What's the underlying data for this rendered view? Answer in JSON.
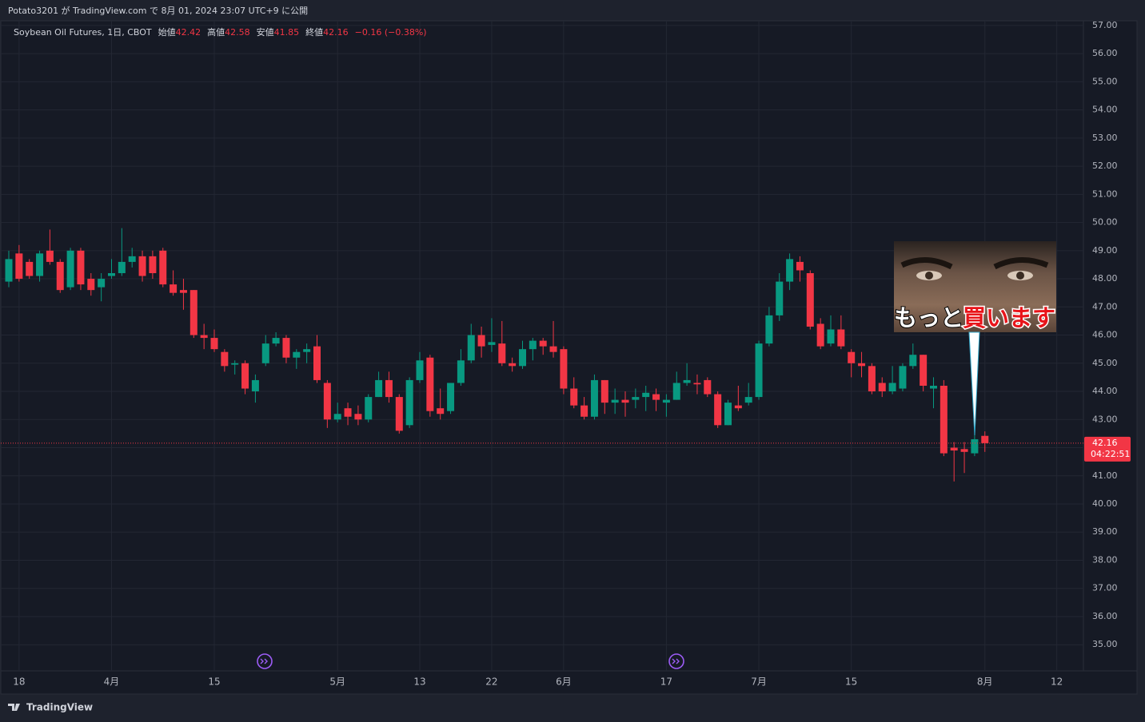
{
  "header": "Potato3201 が TradingView.com で 8月 01, 2024 23:07 UTC+9 に公開",
  "footer": "TradingView",
  "annotation": {
    "line1": "もっと",
    "line2": "買います"
  },
  "chart_data": {
    "type": "candlestick",
    "title": "Soybean Oil Futures, 1日, CBOT",
    "legend_labels": {
      "open": "始値",
      "high": "高値",
      "low": "安値",
      "close": "終値"
    },
    "change": "−0.16 (−0.38%)",
    "countdown": "04:22:51",
    "up_color": "#089981",
    "down_color": "#f23645",
    "categories": [
      null,
      "18",
      null,
      null,
      null,
      null,
      null,
      null,
      null,
      null,
      "4月",
      null,
      null,
      null,
      null,
      null,
      null,
      null,
      null,
      null,
      "15",
      null,
      null,
      null,
      null,
      null,
      null,
      null,
      null,
      null,
      null,
      null,
      "5月",
      null,
      null,
      null,
      null,
      null,
      null,
      null,
      "13",
      null,
      null,
      null,
      null,
      null,
      null,
      "22",
      null,
      null,
      null,
      null,
      null,
      null,
      "6月",
      null,
      null,
      null,
      null,
      null,
      null,
      null,
      null,
      null,
      "17",
      null,
      null,
      null,
      null,
      null,
      null,
      null,
      null,
      "7月",
      null,
      null,
      null,
      null,
      null,
      null,
      null,
      null,
      "15",
      null,
      null,
      null,
      null,
      null,
      null,
      null,
      null,
      null,
      null,
      null,
      null,
      "8月",
      null,
      null,
      null,
      null,
      null,
      null,
      "12"
    ],
    "open": [
      47.9,
      48.9,
      48.6,
      48.1,
      49.0,
      48.6,
      47.7,
      49.0,
      48.0,
      47.7,
      48.1,
      48.2,
      48.6,
      48.8,
      48.8,
      49.0,
      47.8,
      47.6,
      47.6,
      46.0,
      45.9,
      45.4,
      44.95,
      45.0,
      44.0,
      45.0,
      45.7,
      45.9,
      45.2,
      45.4,
      45.6,
      44.3,
      43.0,
      43.4,
      43.2,
      43.0,
      43.8,
      44.4,
      43.8,
      42.8,
      44.4,
      45.2,
      43.4,
      43.3,
      44.3,
      45.1,
      46.0,
      45.65,
      45.7,
      45.0,
      44.9,
      45.5,
      45.8,
      45.6,
      45.5,
      44.1,
      43.5,
      43.1,
      44.4,
      43.6,
      43.7,
      43.7,
      43.8,
      43.9,
      43.6,
      43.7,
      44.3,
      44.3,
      44.4,
      43.9,
      42.8,
      43.5,
      43.6,
      43.8,
      45.7,
      46.7,
      47.9,
      48.6,
      48.2,
      46.4,
      45.7,
      46.2,
      45.4,
      45.0,
      44.9,
      44.3,
      44.0,
      44.1,
      44.9,
      45.3,
      44.1,
      44.2,
      42.0,
      41.95,
      41.8,
      42.42,
      null,
      null,
      null,
      null,
      null,
      null,
      null
    ],
    "high": [
      49.0,
      49.2,
      48.7,
      49.0,
      49.75,
      48.7,
      49.1,
      49.1,
      48.2,
      48.2,
      48.7,
      49.8,
      49.1,
      49.0,
      49.0,
      49.1,
      48.3,
      48.0,
      47.6,
      46.4,
      46.2,
      45.5,
      45.1,
      45.1,
      44.6,
      46.0,
      46.1,
      46.0,
      45.5,
      45.7,
      46.0,
      44.4,
      43.6,
      43.6,
      43.5,
      43.9,
      44.7,
      44.7,
      43.9,
      44.5,
      45.4,
      45.3,
      44.1,
      44.3,
      45.5,
      46.4,
      46.3,
      46.6,
      46.5,
      45.2,
      45.8,
      45.9,
      45.9,
      46.5,
      45.6,
      44.5,
      43.8,
      44.6,
      44.4,
      44.1,
      44.0,
      44.1,
      44.2,
      44.1,
      43.9,
      44.7,
      45.0,
      44.6,
      44.5,
      44.0,
      43.7,
      44.2,
      44.3,
      45.8,
      47.0,
      48.2,
      48.9,
      48.8,
      48.3,
      46.6,
      46.7,
      46.7,
      45.5,
      45.4,
      45.0,
      44.5,
      44.9,
      45.0,
      45.7,
      45.3,
      44.5,
      44.4,
      42.2,
      42.2,
      42.5,
      42.58,
      null,
      null,
      null,
      null,
      null,
      null,
      null
    ],
    "low": [
      47.7,
      47.9,
      48.0,
      47.9,
      48.5,
      47.5,
      47.6,
      47.6,
      47.4,
      47.2,
      48.0,
      48.1,
      48.4,
      47.9,
      48.0,
      47.7,
      47.4,
      46.9,
      45.9,
      45.5,
      45.4,
      44.7,
      44.6,
      43.9,
      43.6,
      44.9,
      45.6,
      45.0,
      44.8,
      45.0,
      44.3,
      42.7,
      42.9,
      42.8,
      42.8,
      42.9,
      43.8,
      43.6,
      42.5,
      42.7,
      44.3,
      43.1,
      43.0,
      43.2,
      44.2,
      45.0,
      45.2,
      45.4,
      44.9,
      44.7,
      44.8,
      45.1,
      45.3,
      45.2,
      43.9,
      43.4,
      43.0,
      43.0,
      43.2,
      43.2,
      43.1,
      43.4,
      43.3,
      43.3,
      43.1,
      43.7,
      44.2,
      43.9,
      43.8,
      42.7,
      42.8,
      43.3,
      43.5,
      43.7,
      45.6,
      46.5,
      47.6,
      47.9,
      46.2,
      45.5,
      45.6,
      45.5,
      44.5,
      44.5,
      43.9,
      43.8,
      43.9,
      44.0,
      44.8,
      44.0,
      43.4,
      41.7,
      40.8,
      41.1,
      41.7,
      41.85,
      null,
      null,
      null,
      null,
      null,
      null,
      null
    ],
    "close": [
      48.7,
      48.0,
      48.1,
      48.9,
      48.6,
      47.6,
      49.0,
      47.8,
      47.6,
      48.0,
      48.2,
      48.6,
      48.8,
      48.1,
      48.2,
      47.8,
      47.5,
      47.5,
      46.0,
      45.9,
      45.5,
      44.9,
      45.0,
      44.1,
      44.4,
      45.7,
      45.9,
      45.2,
      45.4,
      45.5,
      44.4,
      43.0,
      43.2,
      43.1,
      43.0,
      43.8,
      44.4,
      43.8,
      42.6,
      44.4,
      45.1,
      43.3,
      43.2,
      44.3,
      45.1,
      46.0,
      45.6,
      45.75,
      45.0,
      44.9,
      45.5,
      45.8,
      45.6,
      45.4,
      44.1,
      43.5,
      43.1,
      44.4,
      43.6,
      43.7,
      43.6,
      43.8,
      43.95,
      43.7,
      43.7,
      44.3,
      44.4,
      44.25,
      43.9,
      42.8,
      43.6,
      43.4,
      43.8,
      45.7,
      46.7,
      47.9,
      48.7,
      48.3,
      46.3,
      45.6,
      46.2,
      45.6,
      45.0,
      44.9,
      44.0,
      44.0,
      44.3,
      44.9,
      45.3,
      44.2,
      44.2,
      41.8,
      41.9,
      41.85,
      42.3,
      42.16,
      null,
      null,
      null,
      null,
      null,
      null,
      null
    ],
    "ylim": [
      34.07,
      57.28
    ],
    "yticks": [
      {
        "value": 57,
        "label": "57.00"
      },
      {
        "value": 56,
        "label": "56.00"
      },
      {
        "value": 55,
        "label": "55.00"
      },
      {
        "value": 54,
        "label": "54.00"
      },
      {
        "value": 53,
        "label": "53.00"
      },
      {
        "value": 52,
        "label": "52.00"
      },
      {
        "value": 51,
        "label": "51.00"
      },
      {
        "value": 50,
        "label": "50.00"
      },
      {
        "value": 49,
        "label": "49.00"
      },
      {
        "value": 48,
        "label": "48.00"
      },
      {
        "value": 47,
        "label": "47.00"
      },
      {
        "value": 46,
        "label": "46.00"
      },
      {
        "value": 45,
        "label": "45.00"
      },
      {
        "value": 44,
        "label": "44.00"
      },
      {
        "value": 43,
        "label": "43.00"
      },
      {
        "value": 42,
        "label": "42.00"
      },
      {
        "value": 41,
        "label": "41.00"
      },
      {
        "value": 40,
        "label": "40.00"
      },
      {
        "value": 39,
        "label": "39.00"
      },
      {
        "value": 38,
        "label": "38.00"
      },
      {
        "value": 37,
        "label": "37.00"
      },
      {
        "value": 36,
        "label": "36.00"
      },
      {
        "value": 35,
        "label": "35.00"
      }
    ],
    "grid": true
  }
}
